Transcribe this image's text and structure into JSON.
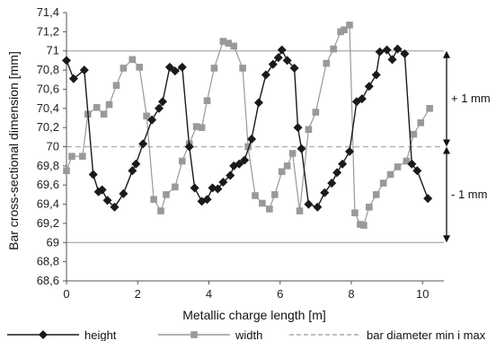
{
  "chart_data": {
    "type": "line",
    "xlabel": "Metallic charge length [m]",
    "ylabel": "Bar cross-sectional dimension [mm]",
    "xlim": [
      0,
      10.6
    ],
    "ylim": [
      68.6,
      71.4
    ],
    "x_ticks": [
      0,
      2,
      4,
      6,
      8,
      10
    ],
    "x_tick_labels": [
      "0",
      "2",
      "4",
      "6",
      "8",
      "10"
    ],
    "y_ticks": [
      68.6,
      68.8,
      69.0,
      69.2,
      69.4,
      69.6,
      69.8,
      70.0,
      70.2,
      70.4,
      70.6,
      70.8,
      71.0,
      71.2,
      71.4
    ],
    "y_tick_labels": [
      "68,6",
      "68,8",
      "69",
      "69,2",
      "69,4",
      "69,6",
      "69,8",
      "70",
      "70,2",
      "70,4",
      "70,6",
      "70,8",
      "71",
      "71,2",
      "71,4"
    ],
    "grid": false,
    "legend_position": "bottom",
    "series": [
      {
        "name": "height",
        "color": "#1a1a1a",
        "marker": "diamond",
        "points": [
          [
            0.0,
            70.9
          ],
          [
            0.2,
            70.71
          ],
          [
            0.5,
            70.8
          ],
          [
            0.75,
            69.71
          ],
          [
            0.9,
            69.53
          ],
          [
            1.0,
            69.55
          ],
          [
            1.15,
            69.44
          ],
          [
            1.35,
            69.37
          ],
          [
            1.6,
            69.51
          ],
          [
            1.85,
            69.75
          ],
          [
            1.95,
            69.82
          ],
          [
            2.15,
            70.03
          ],
          [
            2.4,
            70.28
          ],
          [
            2.6,
            70.4
          ],
          [
            2.7,
            70.47
          ],
          [
            2.9,
            70.83
          ],
          [
            3.05,
            70.79
          ],
          [
            3.25,
            70.83
          ],
          [
            3.45,
            70.0
          ],
          [
            3.6,
            69.57
          ],
          [
            3.8,
            69.43
          ],
          [
            3.95,
            69.45
          ],
          [
            4.1,
            69.57
          ],
          [
            4.25,
            69.56
          ],
          [
            4.4,
            69.63
          ],
          [
            4.6,
            69.7
          ],
          [
            4.7,
            69.8
          ],
          [
            4.85,
            69.82
          ],
          [
            5.0,
            69.86
          ],
          [
            5.2,
            70.08
          ],
          [
            5.4,
            70.46
          ],
          [
            5.6,
            70.75
          ],
          [
            5.8,
            70.86
          ],
          [
            5.95,
            70.93
          ],
          [
            6.05,
            71.01
          ],
          [
            6.2,
            70.9
          ],
          [
            6.4,
            70.82
          ],
          [
            6.5,
            70.2
          ],
          [
            6.6,
            69.98
          ],
          [
            6.8,
            69.4
          ],
          [
            7.05,
            69.37
          ],
          [
            7.25,
            69.52
          ],
          [
            7.45,
            69.62
          ],
          [
            7.6,
            69.73
          ],
          [
            7.75,
            69.82
          ],
          [
            7.95,
            69.95
          ],
          [
            8.15,
            70.47
          ],
          [
            8.3,
            70.5
          ],
          [
            8.5,
            70.63
          ],
          [
            8.7,
            70.75
          ],
          [
            8.8,
            70.99
          ],
          [
            9.0,
            71.01
          ],
          [
            9.15,
            70.91
          ],
          [
            9.3,
            71.02
          ],
          [
            9.5,
            70.97
          ],
          [
            9.7,
            69.82
          ],
          [
            9.85,
            69.75
          ],
          [
            10.15,
            69.46
          ]
        ]
      },
      {
        "name": "width",
        "color": "#999999",
        "marker": "square",
        "points": [
          [
            0.0,
            69.75
          ],
          [
            0.15,
            69.9
          ],
          [
            0.45,
            69.9
          ],
          [
            0.6,
            70.34
          ],
          [
            0.85,
            70.41
          ],
          [
            1.05,
            70.34
          ],
          [
            1.2,
            70.44
          ],
          [
            1.4,
            70.64
          ],
          [
            1.6,
            70.82
          ],
          [
            1.85,
            70.91
          ],
          [
            2.05,
            70.83
          ],
          [
            2.25,
            70.32
          ],
          [
            2.45,
            69.45
          ],
          [
            2.65,
            69.33
          ],
          [
            2.8,
            69.5
          ],
          [
            3.05,
            69.58
          ],
          [
            3.25,
            69.85
          ],
          [
            3.45,
            70.03
          ],
          [
            3.65,
            70.21
          ],
          [
            3.8,
            70.2
          ],
          [
            3.95,
            70.48
          ],
          [
            4.15,
            70.82
          ],
          [
            4.4,
            71.1
          ],
          [
            4.55,
            71.08
          ],
          [
            4.7,
            71.05
          ],
          [
            4.95,
            70.82
          ],
          [
            5.1,
            70.0
          ],
          [
            5.3,
            69.49
          ],
          [
            5.5,
            69.41
          ],
          [
            5.7,
            69.35
          ],
          [
            5.85,
            69.5
          ],
          [
            6.05,
            69.74
          ],
          [
            6.2,
            69.8
          ],
          [
            6.35,
            69.93
          ],
          [
            6.55,
            69.33
          ],
          [
            6.8,
            70.18
          ],
          [
            7.0,
            70.36
          ],
          [
            7.3,
            70.87
          ],
          [
            7.5,
            71.02
          ],
          [
            7.7,
            71.2
          ],
          [
            7.8,
            71.22
          ],
          [
            7.95,
            71.27
          ],
          [
            8.1,
            69.31
          ],
          [
            8.25,
            69.19
          ],
          [
            8.35,
            69.18
          ],
          [
            8.5,
            69.37
          ],
          [
            8.7,
            69.5
          ],
          [
            8.9,
            69.62
          ],
          [
            9.1,
            69.71
          ],
          [
            9.3,
            69.79
          ],
          [
            9.55,
            69.85
          ],
          [
            9.75,
            70.13
          ],
          [
            9.95,
            70.25
          ],
          [
            10.2,
            70.4
          ]
        ]
      }
    ],
    "reference_lines": [
      {
        "y": 71.0,
        "style": "solid",
        "color": "#aaaaaa"
      },
      {
        "y": 70.0,
        "style": "dashed",
        "color": "#aaaaaa",
        "name": "bar diameter min i max"
      },
      {
        "y": 69.0,
        "style": "solid",
        "color": "#aaaaaa"
      }
    ],
    "annotations": [
      {
        "text": "+ 1 mm",
        "from_y": 71.0,
        "to_y": 70.0
      },
      {
        "text": "- 1 mm",
        "from_y": 70.0,
        "to_y": 69.0
      }
    ],
    "legend": [
      {
        "label": "height",
        "color": "#1a1a1a",
        "marker": "diamond",
        "line": "solid"
      },
      {
        "label": "width",
        "color": "#999999",
        "marker": "square",
        "line": "solid"
      },
      {
        "label": "bar diameter min i max",
        "color": "#999999",
        "marker": "none",
        "line": "dashed"
      }
    ]
  }
}
